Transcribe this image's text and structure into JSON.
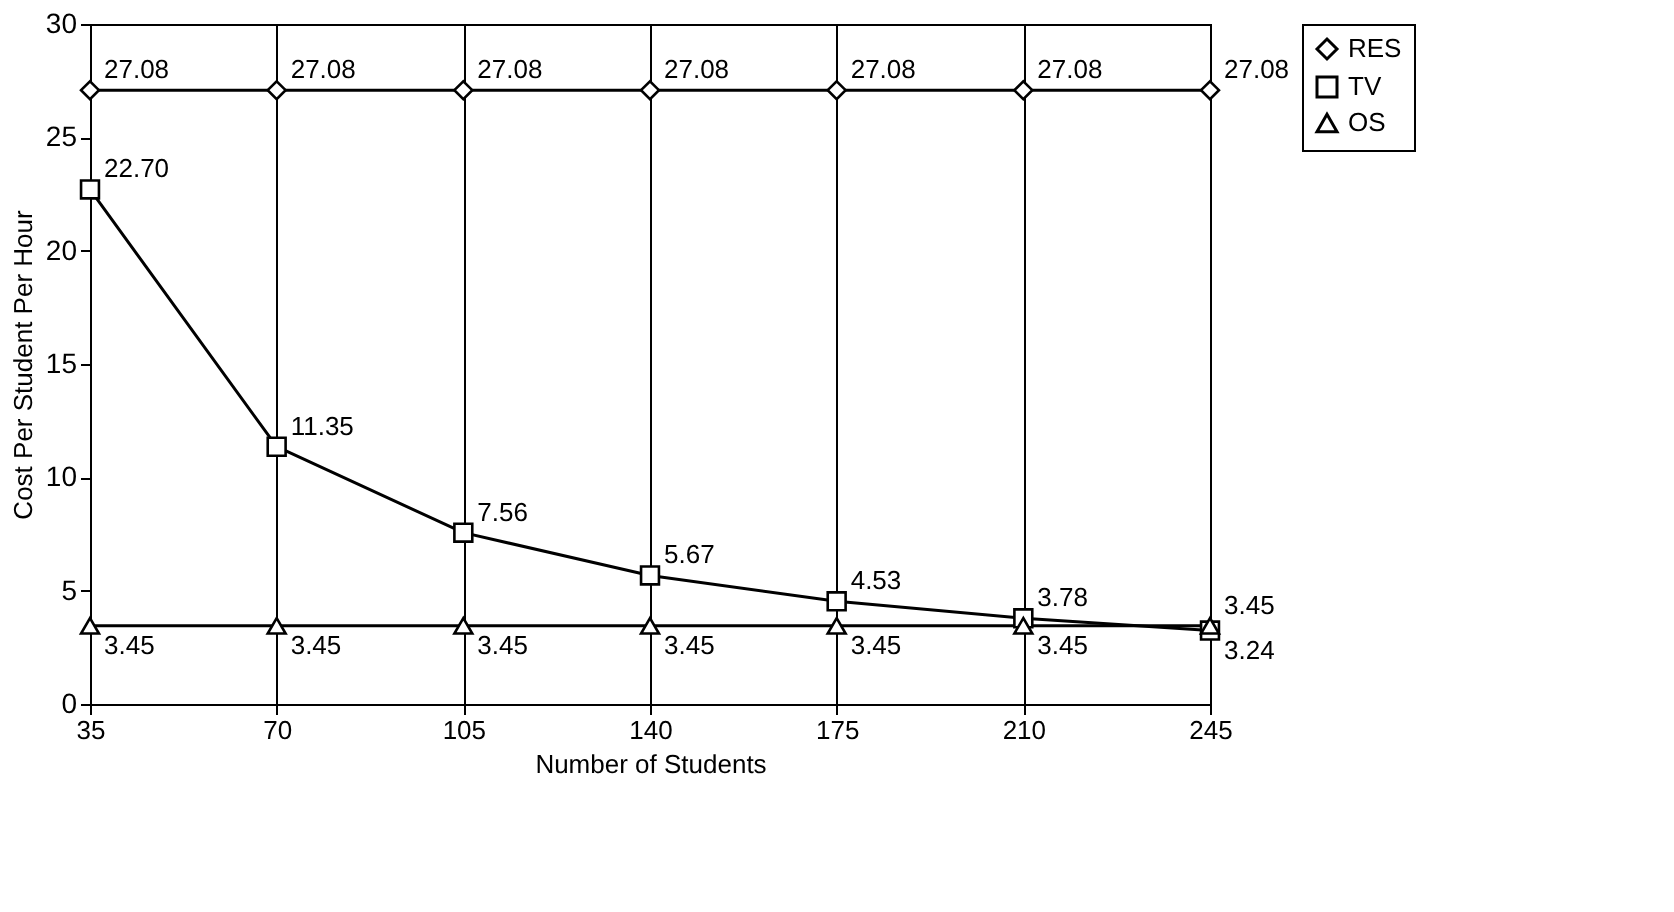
{
  "chart_data": {
    "type": "line",
    "xlabel": "Number of Students",
    "ylabel": "Cost Per Student Per Hour",
    "categories": [
      "35",
      "70",
      "105",
      "140",
      "175",
      "210",
      "245"
    ],
    "series": [
      {
        "name": "RES",
        "color": "#000000",
        "marker": "diamond",
        "values": [
          27.08,
          27.08,
          27.08,
          27.08,
          27.08,
          27.08,
          27.08
        ],
        "value_labels": [
          "27.08",
          "27.08",
          "27.08",
          "27.08",
          "27.08",
          "27.08",
          "27.08"
        ]
      },
      {
        "name": "TV",
        "color": "#000000",
        "marker": "square",
        "values": [
          22.7,
          11.35,
          7.56,
          5.67,
          4.53,
          3.78,
          3.24
        ],
        "value_labels": [
          "22.70",
          "11.35",
          "7.56",
          "5.67",
          "4.53",
          "3.78",
          "3.24"
        ]
      },
      {
        "name": "OS",
        "color": "#000000",
        "marker": "triangle",
        "values": [
          3.45,
          3.45,
          3.45,
          3.45,
          3.45,
          3.45,
          3.45
        ],
        "value_labels": [
          "3.45",
          "3.45",
          "3.45",
          "3.45",
          "3.45",
          "3.45",
          "3.45"
        ]
      }
    ],
    "ylim": [
      0,
      30
    ],
    "yticks": [
      0,
      5,
      10,
      15,
      20,
      25,
      30
    ],
    "grid": "x",
    "legend": "right",
    "line_style": "solid"
  }
}
